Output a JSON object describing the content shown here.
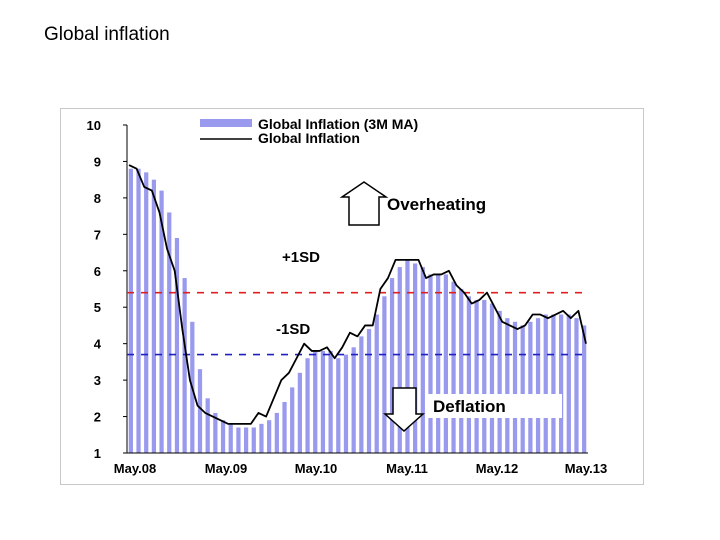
{
  "slide": {
    "title": "Global inflation"
  },
  "chart_data": {
    "type": "bar",
    "title": "",
    "xlabel": "",
    "ylabel": "",
    "ylim": [
      1,
      10
    ],
    "yticks": [
      1,
      2,
      3,
      4,
      5,
      6,
      7,
      8,
      9,
      10
    ],
    "xtick_labels": [
      "May.08",
      "May.09",
      "May.10",
      "May.11",
      "May.12",
      "May.13"
    ],
    "grid": false,
    "legend_position": "top",
    "bar_color": "#9999ee",
    "line_color": "#000000",
    "series": [
      {
        "name": "Global Inflation (3M MA)",
        "type": "bar",
        "values": [
          8.8,
          8.8,
          8.7,
          8.5,
          8.2,
          7.6,
          6.9,
          5.8,
          4.6,
          3.3,
          2.5,
          2.1,
          1.9,
          1.8,
          1.7,
          1.7,
          1.7,
          1.8,
          1.9,
          2.1,
          2.4,
          2.8,
          3.2,
          3.6,
          3.8,
          3.8,
          3.8,
          3.6,
          3.7,
          3.9,
          4.2,
          4.4,
          4.8,
          5.3,
          5.8,
          6.1,
          6.3,
          6.2,
          6.1,
          5.9,
          5.9,
          5.9,
          5.7,
          5.5,
          5.3,
          5.2,
          5.2,
          5.1,
          4.9,
          4.7,
          4.6,
          4.5,
          4.6,
          4.7,
          4.8,
          4.8,
          4.8,
          4.8,
          4.7,
          4.5
        ]
      },
      {
        "name": "Global Inflation",
        "type": "line",
        "values": [
          8.9,
          8.8,
          8.3,
          8.2,
          7.6,
          6.6,
          6.0,
          4.4,
          3.0,
          2.3,
          2.1,
          2.0,
          1.9,
          1.8,
          1.8,
          1.8,
          1.8,
          2.1,
          2.0,
          2.5,
          3.0,
          3.2,
          3.6,
          4.0,
          3.8,
          3.8,
          3.9,
          3.6,
          3.9,
          4.3,
          4.2,
          4.5,
          4.5,
          5.5,
          5.8,
          6.3,
          6.3,
          6.3,
          6.3,
          5.8,
          5.9,
          5.9,
          6.0,
          5.6,
          5.4,
          5.1,
          5.2,
          5.4,
          5.0,
          4.6,
          4.5,
          4.4,
          4.5,
          4.8,
          4.8,
          4.7,
          4.8,
          4.9,
          4.7,
          4.9,
          4.0
        ]
      }
    ],
    "reference_lines": [
      {
        "label": "+1SD",
        "value": 5.4,
        "color": "#e02020"
      },
      {
        "label": "-1SD",
        "value": 3.7,
        "color": "#2020c0"
      }
    ],
    "annotations": [
      {
        "text": "Overheating",
        "direction": "up"
      },
      {
        "text": "Deflation",
        "direction": "down"
      }
    ]
  }
}
